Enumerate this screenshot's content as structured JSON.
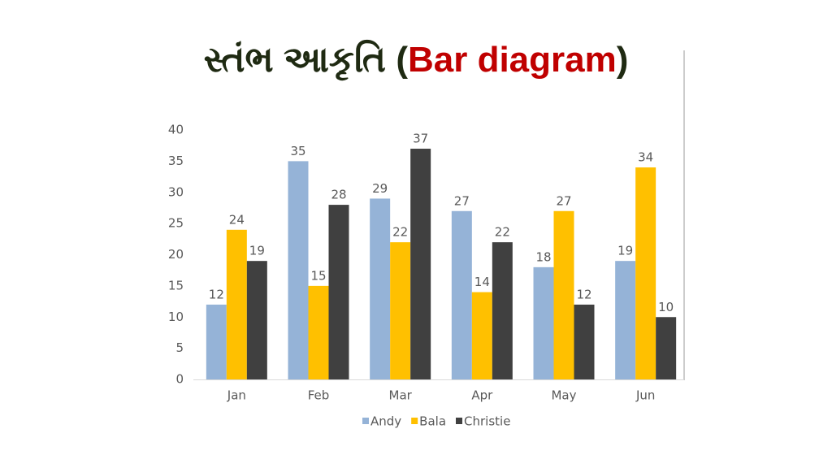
{
  "chart_data": {
    "type": "bar",
    "title": {
      "parts": [
        "સ્તંભ આકૃતિ (",
        "Bar diagram",
        ")"
      ],
      "colors": [
        "#1f2a12",
        "#c00000",
        "#1f2a12"
      ]
    },
    "categories": [
      "Jan",
      "Feb",
      "Mar",
      "Apr",
      "May",
      "Jun"
    ],
    "series": [
      {
        "name": "Andy",
        "color": "#95b3d7",
        "values": [
          12,
          35,
          29,
          27,
          18,
          19
        ]
      },
      {
        "name": "Bala",
        "color": "#ffc000",
        "values": [
          24,
          15,
          22,
          14,
          27,
          34
        ]
      },
      {
        "name": "Christie",
        "color": "#404040",
        "values": [
          19,
          28,
          37,
          22,
          12,
          10
        ]
      }
    ],
    "ylim": [
      0,
      40
    ],
    "yticks": [
      0,
      5,
      10,
      15,
      20,
      25,
      30,
      35,
      40
    ],
    "grid": false,
    "legend": "bottom"
  }
}
